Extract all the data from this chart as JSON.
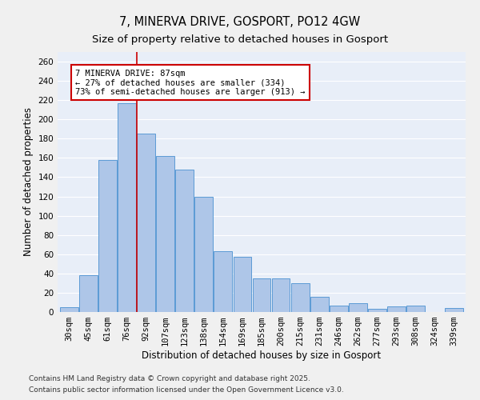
{
  "title1": "7, MINERVA DRIVE, GOSPORT, PO12 4GW",
  "title2": "Size of property relative to detached houses in Gosport",
  "xlabel": "Distribution of detached houses by size in Gosport",
  "ylabel": "Number of detached properties",
  "categories": [
    "30sqm",
    "45sqm",
    "61sqm",
    "76sqm",
    "92sqm",
    "107sqm",
    "123sqm",
    "138sqm",
    "154sqm",
    "169sqm",
    "185sqm",
    "200sqm",
    "215sqm",
    "231sqm",
    "246sqm",
    "262sqm",
    "277sqm",
    "293sqm",
    "308sqm",
    "324sqm",
    "339sqm"
  ],
  "values": [
    5,
    38,
    158,
    217,
    185,
    162,
    148,
    120,
    63,
    57,
    35,
    35,
    30,
    16,
    7,
    9,
    3,
    6,
    7,
    0,
    4
  ],
  "bar_color": "#aec6e8",
  "bar_edge_color": "#5b9bd5",
  "vline_x": 3.5,
  "vline_color": "#cc0000",
  "annotation_text": "7 MINERVA DRIVE: 87sqm\n← 27% of detached houses are smaller (334)\n73% of semi-detached houses are larger (913) →",
  "annotation_box_color": "#ffffff",
  "annotation_box_edge": "#cc0000",
  "footer1": "Contains HM Land Registry data © Crown copyright and database right 2025.",
  "footer2": "Contains public sector information licensed under the Open Government Licence v3.0.",
  "ylim": [
    0,
    270
  ],
  "yticks": [
    0,
    20,
    40,
    60,
    80,
    100,
    120,
    140,
    160,
    180,
    200,
    220,
    240,
    260
  ],
  "fig_bg": "#f0f0f0",
  "plot_bg": "#e8eef8",
  "grid_color": "#ffffff",
  "title_fontsize": 10.5,
  "subtitle_fontsize": 9.5,
  "axis_label_fontsize": 8.5,
  "tick_fontsize": 7.5,
  "footer_fontsize": 6.5,
  "annot_fontsize": 7.5
}
